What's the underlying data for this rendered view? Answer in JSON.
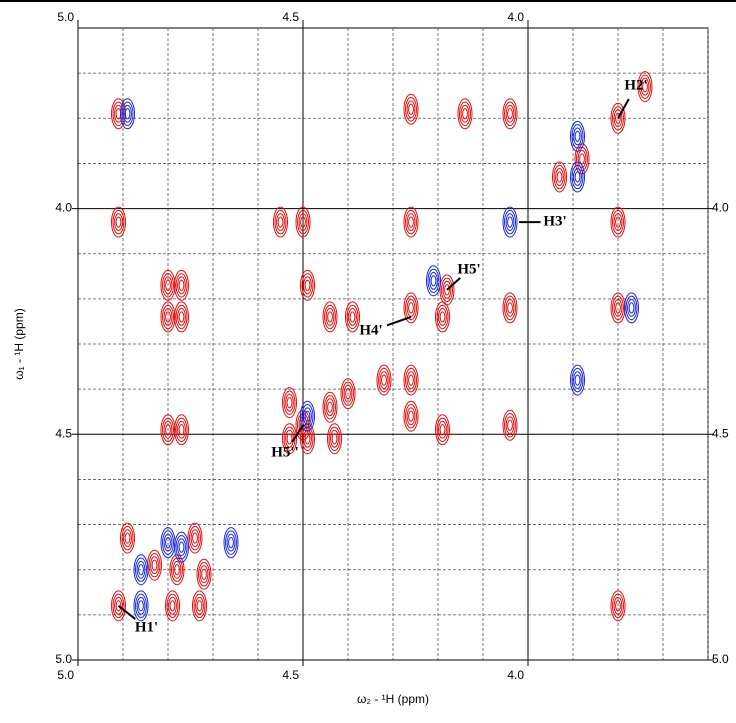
{
  "chart_data": {
    "type": "contour",
    "xlabel": "ω₂ - ¹H  (ppm)",
    "ylabel": "ω₁ - ¹H  (ppm)",
    "xlim": [
      5.0,
      3.6
    ],
    "ylim": [
      3.6,
      5.0
    ],
    "xticks": [
      {
        "value": 5.0,
        "label": "5.0"
      },
      4.5,
      {
        "value": 4.0,
        "label": "4.0"
      }
    ],
    "yticks": [
      {
        "value": 4.0,
        "label": "4.0"
      },
      4.5,
      {
        "value": 5.0,
        "label": "5.0"
      }
    ],
    "xminor": [
      4.9,
      4.8,
      4.7,
      4.6,
      4.4,
      4.3,
      4.2,
      4.1,
      3.9,
      3.8,
      3.7,
      3.6
    ],
    "yminor": [
      3.7,
      3.8,
      3.9,
      4.1,
      4.2,
      4.3,
      4.4,
      4.6,
      4.7,
      4.8,
      4.9
    ],
    "grid": true,
    "series": [
      {
        "name": "positive",
        "color": "#e01010",
        "x": [
          4.91,
          3.8,
          3.74,
          3.88,
          3.93,
          4.26,
          4.14,
          4.04,
          4.91,
          4.26,
          3.8,
          4.5,
          4.55,
          4.8,
          4.77,
          4.49,
          4.8,
          4.77,
          4.39,
          4.44,
          4.26,
          4.18,
          4.19,
          4.04,
          3.8,
          4.32,
          4.26,
          4.26,
          4.19,
          4.4,
          4.53,
          4.44,
          4.5,
          4.49,
          4.8,
          4.77,
          4.04,
          4.43,
          4.53,
          4.74,
          4.83,
          4.78,
          4.72,
          4.91,
          4.79,
          4.73,
          3.8,
          4.89
        ],
        "values": [
          3.79,
          3.8,
          3.73,
          3.89,
          3.93,
          3.78,
          3.79,
          3.79,
          4.03,
          4.03,
          4.03,
          4.03,
          4.03,
          4.17,
          4.17,
          4.17,
          4.24,
          4.24,
          4.24,
          4.24,
          4.22,
          4.18,
          4.24,
          4.22,
          4.22,
          4.38,
          4.38,
          4.46,
          4.49,
          4.41,
          4.43,
          4.44,
          4.48,
          4.51,
          4.49,
          4.49,
          4.48,
          4.51,
          4.51,
          4.73,
          4.79,
          4.8,
          4.81,
          4.88,
          4.88,
          4.88,
          4.88,
          4.73
        ]
      },
      {
        "name": "negative",
        "color": "#1a2ad8",
        "x": [
          4.89,
          3.89,
          3.89,
          4.04,
          4.21,
          3.77,
          3.89,
          4.66,
          4.86,
          4.8,
          4.77,
          4.86,
          4.49
        ],
        "values": [
          3.79,
          3.84,
          3.93,
          4.03,
          4.16,
          4.22,
          4.38,
          4.74,
          4.8,
          4.74,
          4.75,
          4.88,
          4.46
        ]
      }
    ],
    "annotations": [
      {
        "text": "H1'",
        "x": 4.91,
        "y": 4.88
      },
      {
        "text": "H2'",
        "x": 3.8,
        "y": 3.8
      },
      {
        "text": "H3'",
        "x": 4.02,
        "y": 4.03
      },
      {
        "text": "H4'",
        "x": 4.26,
        "y": 4.24
      },
      {
        "text": "H5'",
        "x": 4.18,
        "y": 4.18
      },
      {
        "text": "H5''",
        "x": 4.5,
        "y": 4.48
      }
    ]
  }
}
